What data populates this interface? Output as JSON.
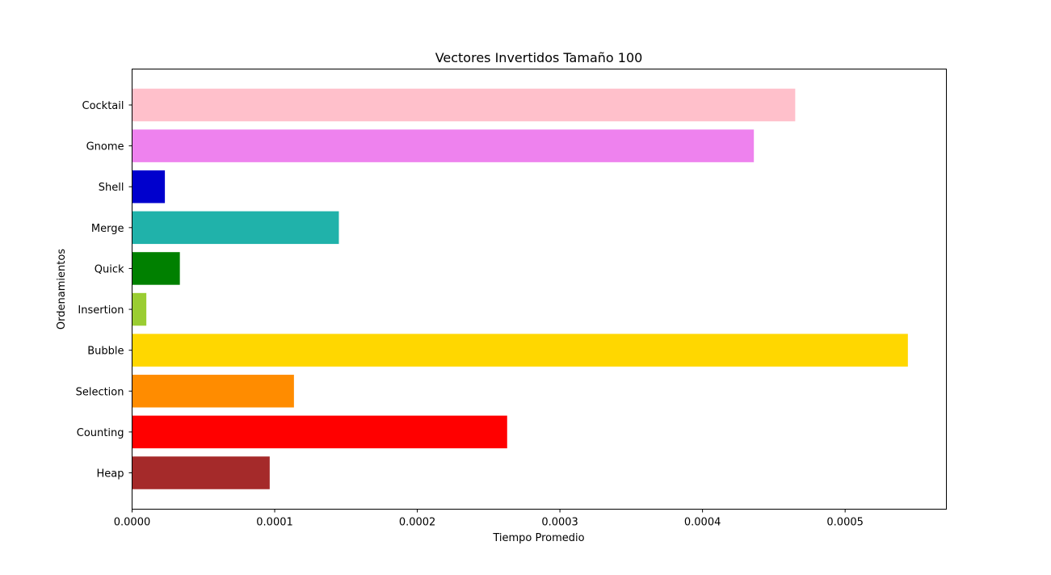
{
  "chart_data": {
    "type": "bar",
    "orientation": "horizontal",
    "title": "Vectores Invertidos Tamaño 100",
    "xlabel": "Tiempo Promedio",
    "ylabel": "Ordenamientos",
    "categories": [
      "Heap",
      "Counting",
      "Selection",
      "Bubble",
      "Insertion",
      "Quick",
      "Merge",
      "Shell",
      "Gnome",
      "Cocktail"
    ],
    "values": [
      9.65e-05,
      0.000263,
      0.0001135,
      0.000544,
      1e-05,
      3.35e-05,
      0.000145,
      2.3e-05,
      0.000436,
      0.000465
    ],
    "colors": [
      "#a52a2a",
      "#ff0000",
      "#ff8c00",
      "#ffd700",
      "#9acd32",
      "#008000",
      "#20b2aa",
      "#0000cd",
      "#ee82ee",
      "#ffc0cb"
    ],
    "xlim": [
      0,
      0.000571
    ],
    "xticks": [
      0,
      0.0001,
      0.0002,
      0.0003,
      0.0004,
      0.0005
    ],
    "xtick_labels": [
      "0.0000",
      "0.0001",
      "0.0002",
      "0.0003",
      "0.0004",
      "0.0005"
    ],
    "grid": false,
    "legend": false
  }
}
